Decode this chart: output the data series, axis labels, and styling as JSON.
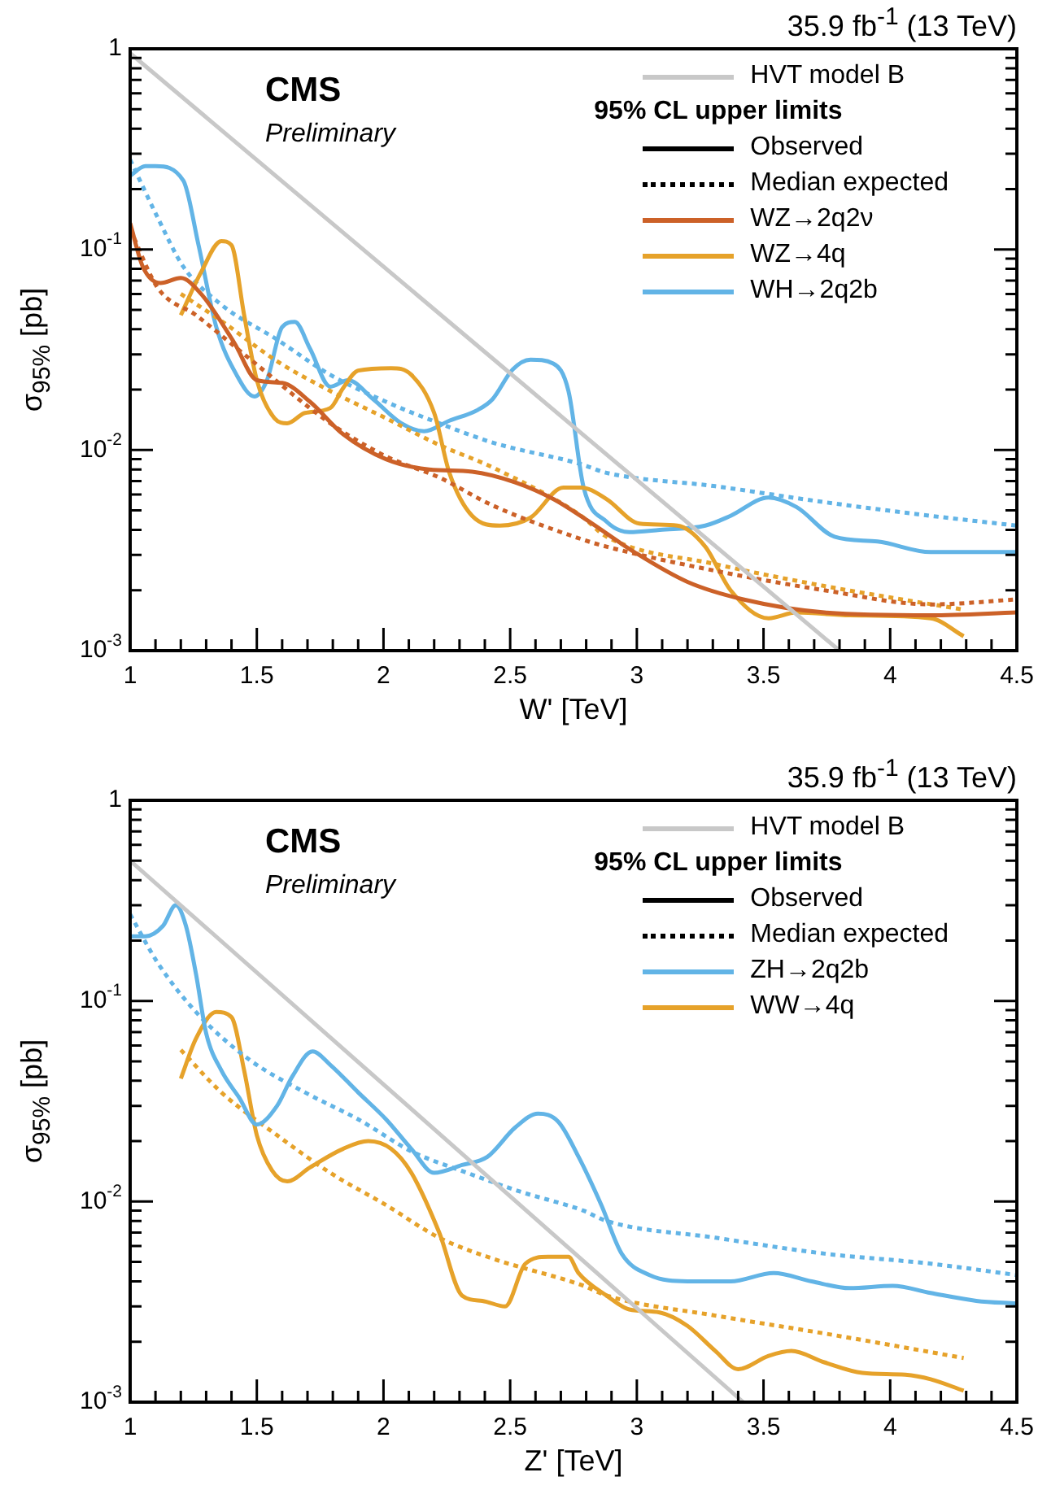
{
  "chart_data": [
    {
      "type": "line",
      "title": "35.9 fb$^{-1}$ (13 TeV)",
      "xlabel": "W' [TeV]",
      "ylabel": "σ$_{95%}$ [pb]",
      "legend_title": "95% CL upper limits",
      "annotations": [
        "CMS",
        "Preliminary",
        "Observed",
        "Median expected"
      ],
      "log": true,
      "legend": "top right",
      "xlim": [
        1,
        4.5
      ],
      "ylim": [
        0.001,
        1
      ],
      "xticks": [
        1,
        {
          "value": 1.1,
          "label": null
        },
        {
          "value": 1.2,
          "label": null
        },
        {
          "value": 1.3,
          "label": null
        },
        {
          "value": 1.4,
          "label": null
        },
        1.5,
        {
          "value": 1.6,
          "label": null
        },
        {
          "value": 1.7,
          "label": null
        },
        {
          "value": 1.8,
          "label": null
        },
        {
          "value": 1.9,
          "label": null
        },
        2,
        {
          "value": 2.1,
          "label": null
        },
        {
          "value": 2.2,
          "label": null
        },
        {
          "value": 2.3,
          "label": null
        },
        {
          "value": 2.4,
          "label": null
        },
        2.5,
        {
          "value": 2.6,
          "label": null
        },
        {
          "value": 2.7,
          "label": null
        },
        {
          "value": 2.8,
          "label": null
        },
        {
          "value": 2.9,
          "label": null
        },
        3,
        {
          "value": 3.1,
          "label": null
        },
        {
          "value": 3.2,
          "label": null
        },
        {
          "value": 3.3,
          "label": null
        },
        {
          "value": 3.4,
          "label": null
        },
        3.5,
        {
          "value": 3.6,
          "label": null
        },
        {
          "value": 3.7,
          "label": null
        },
        {
          "value": 3.8,
          "label": null
        },
        {
          "value": 3.9,
          "label": null
        },
        4,
        {
          "value": 4.1,
          "label": null
        },
        {
          "value": 4.2,
          "label": null
        },
        {
          "value": 4.3,
          "label": null
        },
        {
          "value": 4.4,
          "label": null
        },
        4.5
      ],
      "yticks": [
        {
          "value": 0.001,
          "label": "10$^{-3}$"
        },
        {
          "value": 0.002,
          "label": null
        },
        {
          "value": 0.003,
          "label": null
        },
        {
          "value": 0.004,
          "label": null
        },
        {
          "value": 0.005,
          "label": null
        },
        {
          "value": 0.006,
          "label": null
        },
        {
          "value": 0.007,
          "label": null
        },
        {
          "value": 0.008,
          "label": null
        },
        {
          "value": 0.009,
          "label": null
        },
        {
          "value": 0.01,
          "label": "10$^{-2}$"
        },
        {
          "value": 0.02,
          "label": null
        },
        {
          "value": 0.03,
          "label": null
        },
        {
          "value": 0.04,
          "label": null
        },
        {
          "value": 0.05,
          "label": null
        },
        {
          "value": 0.06,
          "label": null
        },
        {
          "value": 0.07,
          "label": null
        },
        {
          "value": 0.08,
          "label": null
        },
        {
          "value": 0.09,
          "label": null
        },
        {
          "value": 0.1,
          "label": "10$^{-1}$"
        },
        {
          "value": 0.2,
          "label": null
        },
        {
          "value": 0.3,
          "label": null
        },
        {
          "value": 0.4,
          "label": null
        },
        {
          "value": 0.5,
          "label": null
        },
        {
          "value": 0.6,
          "label": null
        },
        {
          "value": 0.7,
          "label": null
        },
        {
          "value": 0.8,
          "label": null
        },
        {
          "value": 0.9,
          "label": null
        },
        1
      ],
      "series": [
        {
          "name": "HVT model B",
          "color": "#c8c8c8",
          "line_style": "solid",
          "x": [
            1,
            3.8
          ],
          "values": [
            0.95,
            0.001
          ]
        },
        {
          "name": "WZ→2q2ν",
          "color": "#cc6128",
          "line_style": "solid",
          "x": [
            1,
            1.05,
            1.12,
            1.2,
            1.28,
            1.41,
            1.5,
            1.6,
            1.71,
            1.84,
            2.01,
            2.18,
            2.35,
            2.52,
            2.67,
            2.8,
            2.99,
            3.2,
            3.42,
            3.74,
            4.16,
            4.5
          ],
          "values": [
            0.135,
            0.082,
            0.068,
            0.072,
            0.06,
            0.0344,
            0.0223,
            0.0216,
            0.0174,
            0.012,
            0.009,
            0.008,
            0.0078,
            0.0069,
            0.0057,
            0.0045,
            0.0031,
            0.0022,
            0.0018,
            0.00155,
            0.0015,
            0.00155
          ]
        },
        {
          "color": "#cc6128",
          "line_style": "dotted",
          "x": [
            1,
            1.11,
            1.26,
            1.47,
            1.79,
            2.01,
            2.22,
            2.43,
            2.78,
            2.88,
            3.31,
            3.74,
            4.16,
            4.5
          ],
          "values": [
            0.126,
            0.064,
            0.047,
            0.0286,
            0.0136,
            0.0093,
            0.0073,
            0.0053,
            0.0036,
            0.0033,
            0.0025,
            0.002,
            0.0017,
            0.0018
          ]
        },
        {
          "name": "WZ→4q",
          "color": "#e6a22a",
          "line_style": "solid",
          "x": [
            1.2,
            1.28,
            1.36,
            1.4,
            1.45,
            1.5,
            1.57,
            1.62,
            1.69,
            1.79,
            1.84,
            1.9,
            2.03,
            2.11,
            2.2,
            2.26,
            2.35,
            2.46,
            2.58,
            2.71,
            2.78,
            2.88,
            3.01,
            3.16,
            3.27,
            3.37,
            3.52,
            3.63,
            3.84,
            4.16,
            4.29
          ],
          "values": [
            0.047,
            0.077,
            0.11,
            0.105,
            0.047,
            0.0223,
            0.0144,
            0.0136,
            0.0153,
            0.0162,
            0.0203,
            0.0249,
            0.0256,
            0.0237,
            0.0153,
            0.0077,
            0.0047,
            0.0042,
            0.0046,
            0.0065,
            0.0065,
            0.0057,
            0.0043,
            0.0042,
            0.0033,
            0.002,
            0.00145,
            0.00155,
            0.0015,
            0.00145,
            0.00118
          ]
        },
        {
          "color": "#e6a22a",
          "line_style": "dotted",
          "x": [
            1.2,
            1.36,
            1.58,
            1.79,
            2.01,
            2.22,
            2.43,
            2.78,
            2.88,
            3.31,
            3.74,
            4.29
          ],
          "values": [
            0.06,
            0.044,
            0.0277,
            0.0197,
            0.0144,
            0.0106,
            0.0082,
            0.0047,
            0.0037,
            0.0027,
            0.0021,
            0.0016
          ]
        },
        {
          "name": "WH→2q2b",
          "color": "#62b4e6",
          "line_style": "solid",
          "x": [
            1,
            1.06,
            1.1,
            1.21,
            1.27,
            1.34,
            1.42,
            1.49,
            1.54,
            1.6,
            1.65,
            1.71,
            1.79,
            1.86,
            1.96,
            2.07,
            2.16,
            2.26,
            2.37,
            2.43,
            2.51,
            2.58,
            2.67,
            2.73,
            2.79,
            2.88,
            2.97,
            3.09,
            3.27,
            3.37,
            3.52,
            3.63,
            3.78,
            3.95,
            4.16,
            4.5
          ],
          "values": [
            0.233,
            0.26,
            0.26,
            0.22,
            0.105,
            0.041,
            0.0237,
            0.0185,
            0.0223,
            0.041,
            0.0435,
            0.032,
            0.0207,
            0.0223,
            0.0179,
            0.0136,
            0.0124,
            0.014,
            0.0158,
            0.0179,
            0.0252,
            0.0282,
            0.027,
            0.0197,
            0.0065,
            0.0044,
            0.0039,
            0.004,
            0.0042,
            0.0047,
            0.0058,
            0.0052,
            0.0037,
            0.0035,
            0.0031,
            0.0031
          ]
        },
        {
          "color": "#62b4e6",
          "line_style": "dotted",
          "x": [
            1,
            1.11,
            1.21,
            1.36,
            1.58,
            1.79,
            2.01,
            2.22,
            2.43,
            2.78,
            2.88,
            3.31,
            3.74,
            4.16,
            4.5
          ],
          "values": [
            0.28,
            0.143,
            0.082,
            0.053,
            0.0355,
            0.0237,
            0.0174,
            0.0136,
            0.0109,
            0.0085,
            0.0077,
            0.0066,
            0.0055,
            0.0047,
            0.0042
          ]
        }
      ]
    },
    {
      "type": "line",
      "title": "35.9 fb$^{-1}$ (13 TeV)",
      "xlabel": "Z' [TeV]",
      "ylabel": "σ$_{95%}$ [pb]",
      "legend_title": "95% CL upper limits",
      "annotations": [
        "CMS",
        "Preliminary",
        "Observed",
        "Median expected"
      ],
      "log": true,
      "legend": "top right",
      "xlim": [
        1,
        4.5
      ],
      "ylim": [
        0.001,
        1
      ],
      "xticks": [
        1,
        {
          "value": 1.1,
          "label": null
        },
        {
          "value": 1.2,
          "label": null
        },
        {
          "value": 1.3,
          "label": null
        },
        {
          "value": 1.4,
          "label": null
        },
        1.5,
        {
          "value": 1.6,
          "label": null
        },
        {
          "value": 1.7,
          "label": null
        },
        {
          "value": 1.8,
          "label": null
        },
        {
          "value": 1.9,
          "label": null
        },
        2,
        {
          "value": 2.1,
          "label": null
        },
        {
          "value": 2.2,
          "label": null
        },
        {
          "value": 2.3,
          "label": null
        },
        {
          "value": 2.4,
          "label": null
        },
        2.5,
        {
          "value": 2.6,
          "label": null
        },
        {
          "value": 2.7,
          "label": null
        },
        {
          "value": 2.8,
          "label": null
        },
        {
          "value": 2.9,
          "label": null
        },
        3,
        {
          "value": 3.1,
          "label": null
        },
        {
          "value": 3.2,
          "label": null
        },
        {
          "value": 3.3,
          "label": null
        },
        {
          "value": 3.4,
          "label": null
        },
        3.5,
        {
          "value": 3.6,
          "label": null
        },
        {
          "value": 3.7,
          "label": null
        },
        {
          "value": 3.8,
          "label": null
        },
        {
          "value": 3.9,
          "label": null
        },
        4,
        {
          "value": 4.1,
          "label": null
        },
        {
          "value": 4.2,
          "label": null
        },
        {
          "value": 4.3,
          "label": null
        },
        {
          "value": 4.4,
          "label": null
        },
        4.5
      ],
      "yticks": [
        {
          "value": 0.001,
          "label": "10$^{-3}$"
        },
        {
          "value": 0.002,
          "label": null
        },
        {
          "value": 0.003,
          "label": null
        },
        {
          "value": 0.004,
          "label": null
        },
        {
          "value": 0.005,
          "label": null
        },
        {
          "value": 0.006,
          "label": null
        },
        {
          "value": 0.007,
          "label": null
        },
        {
          "value": 0.008,
          "label": null
        },
        {
          "value": 0.009,
          "label": null
        },
        {
          "value": 0.01,
          "label": "10$^{-2}$"
        },
        {
          "value": 0.02,
          "label": null
        },
        {
          "value": 0.03,
          "label": null
        },
        {
          "value": 0.04,
          "label": null
        },
        {
          "value": 0.05,
          "label": null
        },
        {
          "value": 0.06,
          "label": null
        },
        {
          "value": 0.07,
          "label": null
        },
        {
          "value": 0.08,
          "label": null
        },
        {
          "value": 0.09,
          "label": null
        },
        {
          "value": 0.1,
          "label": "10$^{-1}$"
        },
        {
          "value": 0.2,
          "label": null
        },
        {
          "value": 0.3,
          "label": null
        },
        {
          "value": 0.4,
          "label": null
        },
        {
          "value": 0.5,
          "label": null
        },
        {
          "value": 0.6,
          "label": null
        },
        {
          "value": 0.7,
          "label": null
        },
        {
          "value": 0.8,
          "label": null
        },
        {
          "value": 0.9,
          "label": null
        },
        1
      ],
      "series": [
        {
          "name": "HVT model B",
          "color": "#c8c8c8",
          "line_style": "solid",
          "x": [
            1,
            3.42
          ],
          "values": [
            0.5,
            0.001
          ]
        },
        {
          "name": "ZH→2q2b",
          "color": "#62b4e6",
          "line_style": "solid",
          "x": [
            1,
            1.06,
            1.13,
            1.18,
            1.22,
            1.26,
            1.3,
            1.36,
            1.43,
            1.5,
            1.58,
            1.64,
            1.72,
            1.79,
            1.9,
            2.01,
            2.11,
            2.2,
            2.31,
            2.41,
            2.52,
            2.61,
            2.69,
            2.77,
            2.86,
            2.94,
            3.05,
            3.2,
            3.37,
            3.54,
            3.69,
            3.84,
            4.01,
            4.16,
            4.34,
            4.5
          ],
          "values": [
            0.21,
            0.21,
            0.237,
            0.3,
            0.237,
            0.136,
            0.069,
            0.045,
            0.033,
            0.0242,
            0.03,
            0.042,
            0.056,
            0.048,
            0.035,
            0.0257,
            0.0183,
            0.0139,
            0.0152,
            0.0167,
            0.0234,
            0.0274,
            0.025,
            0.0167,
            0.0096,
            0.0055,
            0.0043,
            0.004,
            0.004,
            0.0044,
            0.004,
            0.0037,
            0.0038,
            0.0035,
            0.0032,
            0.0031
          ]
        },
        {
          "color": "#62b4e6",
          "line_style": "dotted",
          "x": [
            1,
            1.11,
            1.26,
            1.47,
            1.69,
            1.9,
            2.11,
            2.33,
            2.54,
            2.79,
            2.88,
            3.31,
            3.74,
            4.16,
            4.5
          ],
          "values": [
            0.27,
            0.154,
            0.088,
            0.051,
            0.035,
            0.0257,
            0.0178,
            0.0139,
            0.0112,
            0.009,
            0.008,
            0.0066,
            0.0055,
            0.0049,
            0.0043
          ]
        },
        {
          "name": "WW→4q",
          "color": "#e6a22a",
          "line_style": "solid",
          "x": [
            1.2,
            1.26,
            1.34,
            1.4,
            1.45,
            1.5,
            1.56,
            1.62,
            1.71,
            1.84,
            1.94,
            2.03,
            2.11,
            2.22,
            2.31,
            2.39,
            2.48,
            2.56,
            2.65,
            2.73,
            2.77,
            2.88,
            2.97,
            3.09,
            3.2,
            3.31,
            3.4,
            3.52,
            3.61,
            3.74,
            3.89,
            4.06,
            4.16,
            4.29
          ],
          "values": [
            0.041,
            0.065,
            0.088,
            0.083,
            0.045,
            0.0214,
            0.0143,
            0.0126,
            0.0148,
            0.0183,
            0.02,
            0.0183,
            0.0139,
            0.007,
            0.0034,
            0.0032,
            0.003,
            0.0049,
            0.0053,
            0.0053,
            0.0044,
            0.0034,
            0.0029,
            0.0028,
            0.0024,
            0.0018,
            0.00146,
            0.0017,
            0.0018,
            0.00158,
            0.0014,
            0.00137,
            0.0013,
            0.00114
          ]
        },
        {
          "color": "#e6a22a",
          "line_style": "dotted",
          "x": [
            1.2,
            1.36,
            1.58,
            1.79,
            2.01,
            2.22,
            2.43,
            2.79,
            2.88,
            3.31,
            3.74,
            4.29
          ],
          "values": [
            0.057,
            0.035,
            0.0214,
            0.0139,
            0.0096,
            0.0066,
            0.0052,
            0.0038,
            0.0034,
            0.0027,
            0.0022,
            0.00166
          ]
        }
      ]
    }
  ]
}
